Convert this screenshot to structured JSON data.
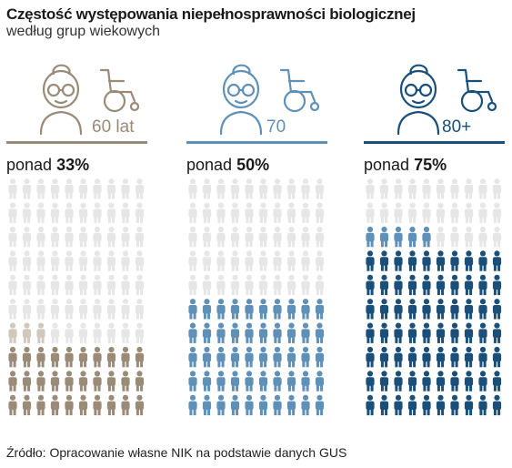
{
  "title": "Częstość występowania niepełnosprawności biologicznej",
  "subtitle": "według grup wiekowych",
  "source": "Źródło: Opracowanie własne NIK na podstawie danych GUS",
  "chart_data": {
    "type": "pictogram",
    "grid": {
      "columns": 10,
      "rows": 10,
      "total_icons": 100
    },
    "groups": [
      {
        "age_label": "60 lat",
        "prefix": "ponad",
        "percent_label": "33%",
        "value": 33,
        "color": "#9a8a78",
        "partial_color": "#d1c8bd"
      },
      {
        "age_label": "70",
        "prefix": "ponad",
        "percent_label": "50%",
        "value": 50,
        "color": "#5f90b8",
        "partial_color": "#b3cde0"
      },
      {
        "age_label": "80+",
        "prefix": "ponad",
        "percent_label": "75%",
        "value": 75,
        "color": "#1a4f7a",
        "partial_color": "#5f90b8"
      }
    ],
    "empty_color": "#e6e6e6"
  }
}
